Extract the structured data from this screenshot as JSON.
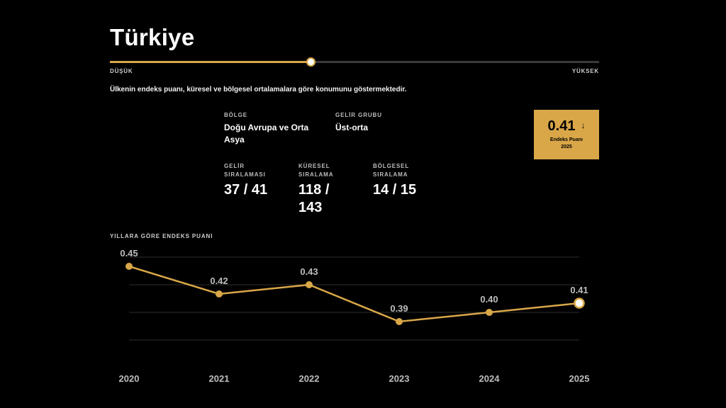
{
  "header": {
    "title": "Türkiye",
    "scale_low": "DÜŞÜK",
    "scale_high": "YÜKSEK",
    "scale_position": 0.41,
    "description": "Ülkenin endeks puanı, küresel ve bölgesel ortalamalara göre konumunu göstermektedir."
  },
  "info": {
    "region_label": "BÖLGE",
    "region_value": "Doğu Avrupa ve Orta Asya",
    "income_group_label": "GELİR GRUBU",
    "income_group_value": "Üst-orta",
    "income_rank_label": "GELİR SIRALAMASI",
    "income_rank_value": "37 / 41",
    "global_rank_label": "KÜRESEL SIRALAMA",
    "global_rank_value": "118 / 143",
    "regional_rank_label": "BÖLGESEL SIRALAMA",
    "regional_rank_value": "14 / 15"
  },
  "score_card": {
    "value": "0.41",
    "arrow": "↓",
    "label": "Endeks Puanı",
    "year": "2025"
  },
  "colors": {
    "accent": "#d9a748",
    "background": "#000000",
    "grid": "#2e2e2e",
    "label": "#bdbdbd"
  },
  "chart_data": {
    "type": "line",
    "title": "YILLARA GÖRE ENDEKS PUANI",
    "categories": [
      "2020",
      "2021",
      "2022",
      "2023",
      "2024",
      "2025"
    ],
    "values": [
      0.45,
      0.42,
      0.43,
      0.39,
      0.4,
      0.41
    ],
    "value_labels": [
      "0.45",
      "0.42",
      "0.43",
      "0.39",
      "0.40",
      "0.41"
    ],
    "ylim": [
      0.35,
      0.47
    ],
    "grid": true,
    "gridlines": [
      0.37,
      0.4,
      0.43,
      0.46
    ],
    "highlight_last": true
  }
}
